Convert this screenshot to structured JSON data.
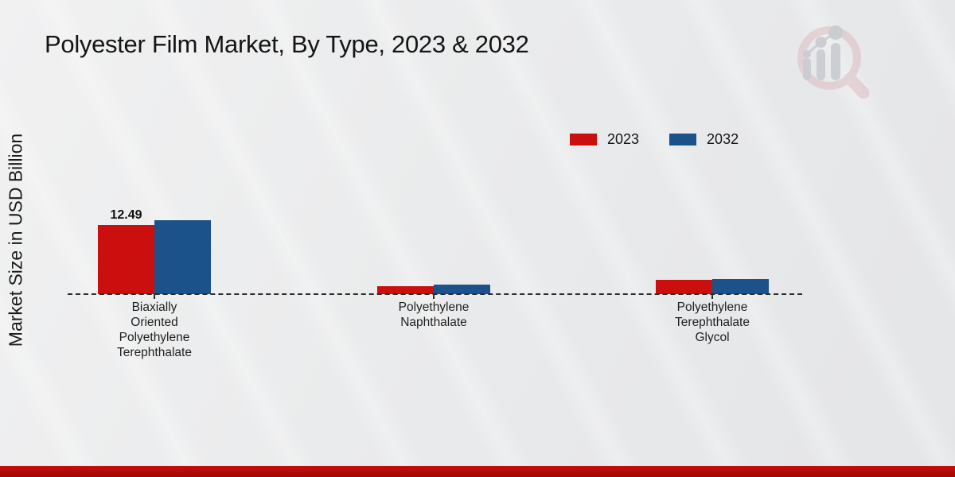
{
  "header": {
    "title": "Polyester Film Market, By Type, 2023 & 2032"
  },
  "colors": {
    "series_2023": "#cb0e0e",
    "series_2032": "#1a5289",
    "footer_bar": "#b90d0d",
    "dashed_baseline": "#2b2b2b",
    "background": "#eaebec"
  },
  "logo": {
    "name": "magnifier-bar-chart-watermark"
  },
  "chart_data": {
    "type": "bar",
    "title": "Polyester Film Market, By Type, 2023 & 2032",
    "xlabel": "",
    "ylabel": "Market Size in USD Billion",
    "ylim": [
      0,
      14
    ],
    "grid": false,
    "legend_position": "top-right",
    "baseline_style": "dashed",
    "categories": [
      "Biaxially Oriented Polyethylene Terephthalate",
      "Polyethylene Naphthalate",
      "Polyethylene Terephthalate Glycol"
    ],
    "category_lines": [
      [
        "Biaxially",
        "Oriented",
        "Polyethylene",
        "Terephthalate"
      ],
      [
        "Polyethylene",
        "Naphthalate"
      ],
      [
        "Polyethylene",
        "Terephthalate",
        "Glycol"
      ]
    ],
    "series": [
      {
        "name": "2023",
        "color": "#cb0e0e",
        "values": [
          12.49,
          1.5,
          2.55
        ]
      },
      {
        "name": "2032",
        "color": "#1a5289",
        "values": [
          13.4,
          1.75,
          2.8
        ]
      }
    ],
    "bar_labels": [
      {
        "series_index": 0,
        "category_index": 0,
        "text": "12.49"
      }
    ]
  }
}
